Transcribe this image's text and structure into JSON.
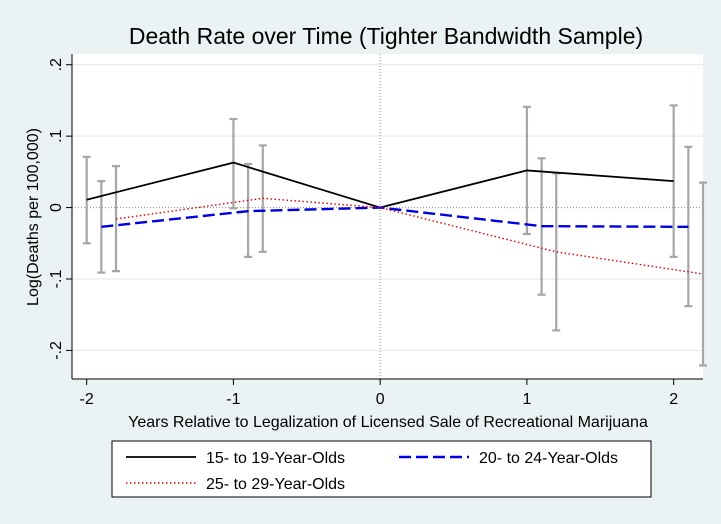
{
  "chart_data": {
    "type": "line",
    "title": "Death Rate over Time (Tighter Bandwidth Sample)",
    "xlabel": "Years Relative to Legalization of Licensed Sale of Recreational Marijuana",
    "ylabel": "Log(Deaths per 100,000)",
    "xlim": [
      -2.1,
      2.2
    ],
    "ylim": [
      -0.24,
      0.215
    ],
    "x_ticks": [
      -2,
      -1,
      0,
      1,
      2
    ],
    "x_tick_labels": [
      "-2",
      "-1",
      "0",
      "1",
      "2"
    ],
    "y_ticks": [
      -0.2,
      -0.1,
      0,
      0.1,
      0.2
    ],
    "y_tick_labels": [
      "-.2",
      "-.1",
      "0",
      ".1",
      ".2"
    ],
    "reference_lines": {
      "x": 0,
      "y": 0
    },
    "grid": true,
    "legend_position": "bottom",
    "series": [
      {
        "name": "15- to 19-Year-Olds",
        "color": "#000000",
        "style": "solid",
        "x": [
          -2,
          -1,
          0,
          1,
          2
        ],
        "y": [
          0.011,
          0.063,
          0.0,
          0.052,
          0.037
        ],
        "ci_x": [
          -2.0,
          -1.0,
          1.0,
          2.0
        ],
        "ci_low": [
          -0.05,
          -0.001,
          -0.037,
          -0.069
        ],
        "ci_high": [
          0.071,
          0.124,
          0.141,
          0.143
        ]
      },
      {
        "name": "20- to 24-Year-Olds",
        "color": "#0000dd",
        "style": "dashed",
        "x": [
          -1.9,
          -0.9,
          0,
          1.1,
          2.1
        ],
        "y": [
          -0.027,
          -0.005,
          0.0,
          -0.026,
          -0.027
        ],
        "ci_x": [
          -1.9,
          -0.9,
          1.1,
          2.1
        ],
        "ci_low": [
          -0.091,
          -0.069,
          -0.122,
          -0.138
        ],
        "ci_high": [
          0.037,
          0.061,
          0.069,
          0.085
        ]
      },
      {
        "name": "25- to 29-Year-Olds",
        "color": "#dd0000",
        "style": "dotted",
        "x": [
          -1.8,
          -0.8,
          0,
          1.2,
          2.2
        ],
        "y": [
          -0.016,
          0.013,
          0.0,
          -0.062,
          -0.093
        ],
        "ci_x": [
          -1.8,
          -0.8,
          1.2,
          2.2
        ],
        "ci_low": [
          -0.089,
          -0.062,
          -0.172,
          -0.221
        ],
        "ci_high": [
          0.058,
          0.087,
          0.048,
          0.035
        ]
      }
    ]
  }
}
